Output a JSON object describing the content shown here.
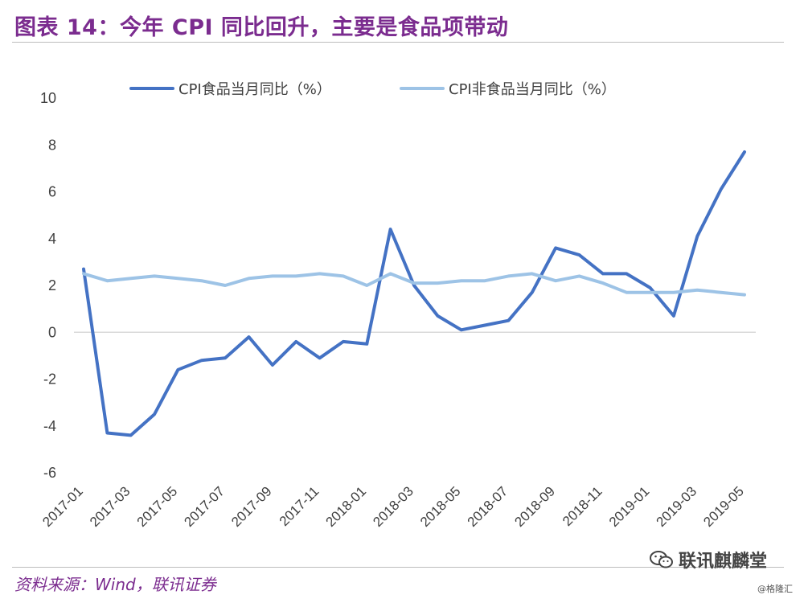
{
  "title": "图表 14：今年 CPI 同比回升，主要是食品项带动",
  "source": "资料来源：Wind，联讯证券",
  "watermark": "联讯麒麟堂",
  "credit": "@格隆汇",
  "colors": {
    "title": "#7b2c8f",
    "series_food": "#4472c4",
    "series_nonfood": "#9dc3e6",
    "axis": "#d9d9d9"
  },
  "chart_data": {
    "type": "line",
    "ylim": [
      -6,
      10
    ],
    "yticks": [
      10,
      8,
      6,
      4,
      2,
      0,
      -2,
      -4,
      -6
    ],
    "x": [
      "2017-01",
      "2017-02",
      "2017-03",
      "2017-04",
      "2017-05",
      "2017-06",
      "2017-07",
      "2017-08",
      "2017-09",
      "2017-10",
      "2017-11",
      "2017-12",
      "2018-01",
      "2018-02",
      "2018-03",
      "2018-04",
      "2018-05",
      "2018-06",
      "2018-07",
      "2018-08",
      "2018-09",
      "2018-10",
      "2018-11",
      "2018-12",
      "2019-01",
      "2019-02",
      "2019-03",
      "2019-04",
      "2019-05"
    ],
    "xtick_labels": [
      "2017-01",
      "2017-03",
      "2017-05",
      "2017-07",
      "2017-09",
      "2017-11",
      "2018-01",
      "2018-03",
      "2018-05",
      "2018-07",
      "2018-09",
      "2018-11",
      "2019-01",
      "2019-03",
      "2019-05"
    ],
    "legend_position": "top",
    "grid": false,
    "series": [
      {
        "name": "CPI食品当月同比（%）",
        "color": "#4472c4",
        "values": [
          2.7,
          -4.3,
          -4.4,
          -3.5,
          -1.6,
          -1.2,
          -1.1,
          -0.2,
          -1.4,
          -0.4,
          -1.1,
          -0.4,
          -0.5,
          4.4,
          2.0,
          0.7,
          0.1,
          0.3,
          0.5,
          1.7,
          3.6,
          3.3,
          2.5,
          2.5,
          1.9,
          0.7,
          4.1,
          6.1,
          7.7
        ]
      },
      {
        "name": "CPI非食品当月同比（%）",
        "color": "#9dc3e6",
        "values": [
          2.5,
          2.2,
          2.3,
          2.4,
          2.3,
          2.2,
          2.0,
          2.3,
          2.4,
          2.4,
          2.5,
          2.4,
          2.0,
          2.5,
          2.1,
          2.1,
          2.2,
          2.2,
          2.4,
          2.5,
          2.2,
          2.4,
          2.1,
          1.7,
          1.7,
          1.7,
          1.8,
          1.7,
          1.6
        ]
      }
    ]
  }
}
